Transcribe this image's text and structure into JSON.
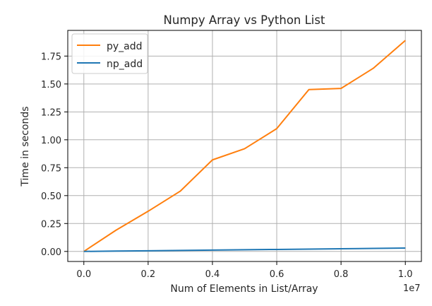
{
  "chart_data": {
    "type": "line",
    "title": "Numpy Array vs Python List",
    "xlabel": "Num of Elements in List/Array",
    "ylabel": "Time in seconds",
    "x_offset_label": "1e7",
    "x": [
      0.0,
      0.1,
      0.2,
      0.3,
      0.4,
      0.5,
      0.6,
      0.7,
      0.8,
      0.9,
      1.0
    ],
    "xlim": [
      -0.05,
      1.05
    ],
    "ylim": [
      -0.09,
      1.98
    ],
    "x_ticks": [
      0.0,
      0.2,
      0.4,
      0.6,
      0.8,
      1.0
    ],
    "x_tick_labels": [
      "0.0",
      "0.2",
      "0.4",
      "0.6",
      "0.8",
      "1.0"
    ],
    "y_ticks": [
      0.0,
      0.25,
      0.5,
      0.75,
      1.0,
      1.25,
      1.5,
      1.75
    ],
    "y_tick_labels": [
      "0.00",
      "0.25",
      "0.50",
      "0.75",
      "1.00",
      "1.25",
      "1.50",
      "1.75"
    ],
    "grid": true,
    "legend_position": "upper-left",
    "series": [
      {
        "name": "py_add",
        "color": "#ff7f0e",
        "values": [
          0.0,
          0.19,
          0.36,
          0.54,
          0.82,
          0.92,
          1.1,
          1.45,
          1.46,
          1.64,
          1.89
        ]
      },
      {
        "name": "np_add",
        "color": "#1f77b4",
        "values": [
          0.0,
          0.003,
          0.006,
          0.009,
          0.012,
          0.015,
          0.018,
          0.021,
          0.024,
          0.027,
          0.03
        ]
      }
    ]
  }
}
